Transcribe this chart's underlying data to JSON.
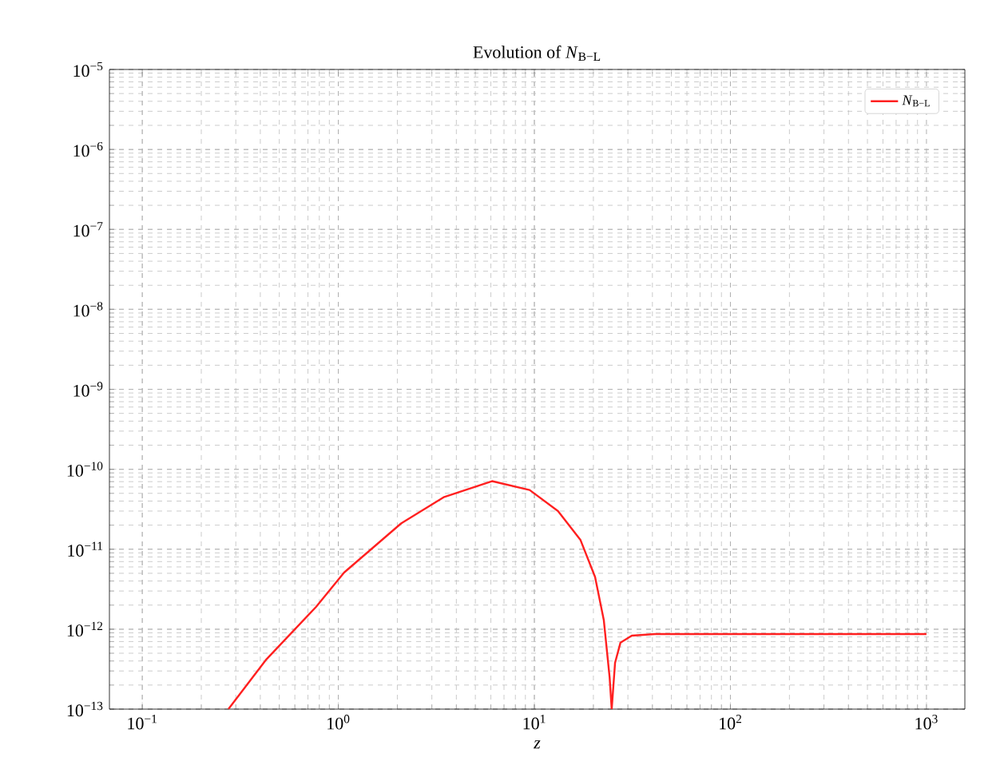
{
  "chart_data": {
    "type": "line",
    "title": "Evolution of *N*$_{B−L}$",
    "xlabel": "z",
    "log": "xy",
    "grid": true,
    "legend": "top right",
    "marker": "none",
    "line_style": "solid",
    "xlim": [
      0.068,
      1570
    ],
    "ylim": [
      1e-13,
      1e-05
    ],
    "xticks": [
      {
        "value": 0.1,
        "label": "10$^{−1}$"
      },
      {
        "value": 1,
        "label": "10$^{0}$"
      },
      {
        "value": 10,
        "label": "10$^{1}$"
      },
      {
        "value": 100,
        "label": "10$^{2}$"
      },
      {
        "value": 1000,
        "label": "10$^{3}$"
      }
    ],
    "yticks": [
      {
        "value": 1e-13,
        "label": "10$^{−13}$"
      },
      {
        "value": 1e-12,
        "label": "10$^{−12}$"
      },
      {
        "value": 1e-11,
        "label": "10$^{−11}$"
      },
      {
        "value": 1e-10,
        "label": "10$^{−10}$"
      },
      {
        "value": 1e-09,
        "label": "10$^{−9}$"
      },
      {
        "value": 1e-08,
        "label": "10$^{−8}$"
      },
      {
        "value": 1e-07,
        "label": "10$^{−7}$"
      },
      {
        "value": 1e-06,
        "label": "10$^{−6}$"
      },
      {
        "value": 1e-05,
        "label": "10$^{−5}$"
      }
    ],
    "series": [
      {
        "name": "*N*$_{B−L}$",
        "color": "#ff2020",
        "x": [
          0.275,
          0.43,
          0.77,
          1.07,
          2.09,
          3.47,
          6.08,
          9.46,
          13.2,
          17.2,
          20.4,
          22.6,
          24.2,
          24.8,
          25.8,
          27.5,
          31.4,
          41.2,
          1000
        ],
        "values": [
          1e-13,
          4.2e-13,
          1.9e-12,
          5.1e-12,
          2.1e-11,
          4.5e-11,
          7.1e-11,
          5.5e-11,
          3e-11,
          1.3e-11,
          4.5e-12,
          1.3e-12,
          2.5e-13,
          1e-13,
          3.8e-13,
          6.8e-13,
          8.3e-13,
          8.7e-13,
          8.7e-13
        ]
      }
    ]
  }
}
